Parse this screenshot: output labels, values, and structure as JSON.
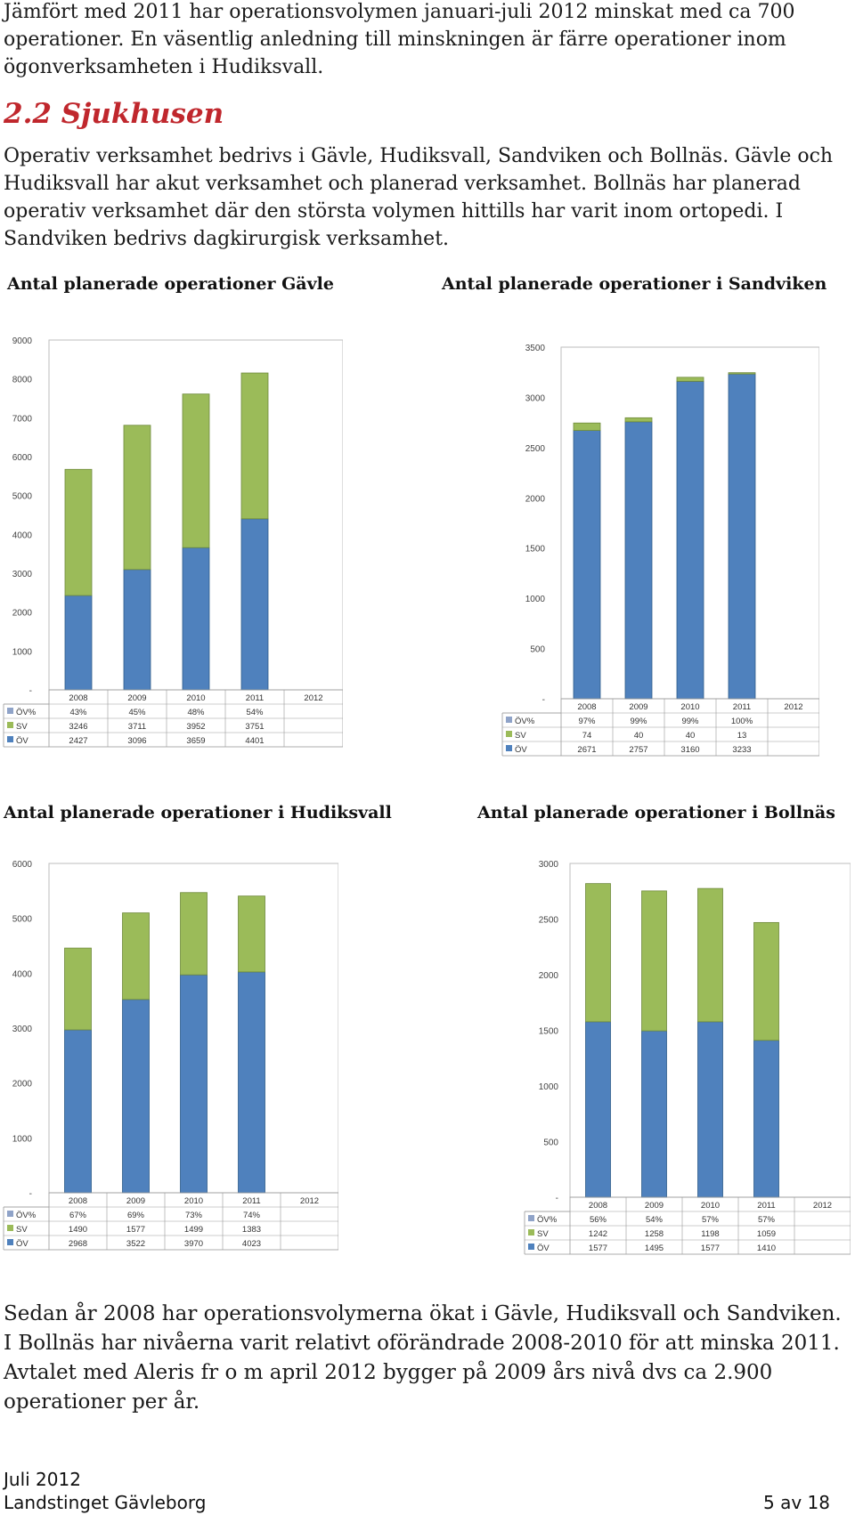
{
  "intro": "Jämfört med 2011 har operationsvolymen januari-juli 2012 minskat med ca 700 operationer. En väsentlig anledning till minskningen är färre operationer inom ögonverksamheten i Hudiksvall.",
  "section_heading": "2.2 Sjukhusen",
  "hospitals_paragraph": "Operativ verksamhet bedrivs i Gävle, Hudiksvall, Sandviken och Bollnäs. Gävle och Hudiksvall har akut verksamhet och planerad verksamhet. Bollnäs har planerad operativ verksamhet där den största volymen hittills har varit inom ortopedi. I Sandviken bedrivs dagkirurgisk verksamhet.",
  "colors": {
    "ov": "#4f81bd",
    "sv": "#9bbb59",
    "heading": "#c0272d"
  },
  "chart_data": [
    {
      "type": "bar",
      "title": "Antal planerade operationer Gävle",
      "categories": [
        "2008",
        "2009",
        "2010",
        "2011",
        "2012"
      ],
      "yticks": [
        "9000",
        "8000",
        "7000",
        "6000",
        "5000",
        "4000",
        "3000",
        "2000",
        "1000",
        "-"
      ],
      "ylim": [
        0,
        9000
      ],
      "series": [
        {
          "name": "ÖV",
          "values": [
            2427,
            3096,
            3659,
            4401,
            null
          ]
        },
        {
          "name": "SV",
          "values": [
            3246,
            3711,
            3952,
            3751,
            null
          ]
        }
      ],
      "table": {
        "rows": [
          {
            "name": "ÖV%",
            "values": [
              "43%",
              "45%",
              "48%",
              "54%",
              ""
            ]
          },
          {
            "name": "SV",
            "values": [
              "3246",
              "3711",
              "3952",
              "3751",
              ""
            ]
          },
          {
            "name": "ÖV",
            "values": [
              "2427",
              "3096",
              "3659",
              "4401",
              ""
            ]
          }
        ]
      }
    },
    {
      "type": "bar",
      "title": "Antal planerade operationer i Sandviken",
      "categories": [
        "2008",
        "2009",
        "2010",
        "2011",
        "2012"
      ],
      "yticks": [
        "3500",
        "3000",
        "2500",
        "2000",
        "1500",
        "1000",
        "500",
        "-"
      ],
      "ylim": [
        0,
        3500
      ],
      "series": [
        {
          "name": "ÖV",
          "values": [
            2671,
            2757,
            3160,
            3233,
            null
          ]
        },
        {
          "name": "SV",
          "values": [
            74,
            40,
            40,
            13,
            null
          ]
        }
      ],
      "table": {
        "rows": [
          {
            "name": "ÖV%",
            "values": [
              "97%",
              "99%",
              "99%",
              "100%",
              ""
            ]
          },
          {
            "name": "SV",
            "values": [
              "74",
              "40",
              "40",
              "13",
              ""
            ]
          },
          {
            "name": "ÖV",
            "values": [
              "2671",
              "2757",
              "3160",
              "3233",
              ""
            ]
          }
        ]
      }
    },
    {
      "type": "bar",
      "title": "Antal planerade operationer i Hudiksvall",
      "categories": [
        "2008",
        "2009",
        "2010",
        "2011",
        "2012"
      ],
      "yticks": [
        "6000",
        "5000",
        "4000",
        "3000",
        "2000",
        "1000",
        "-"
      ],
      "ylim": [
        0,
        6000
      ],
      "series": [
        {
          "name": "ÖV",
          "values": [
            2968,
            3522,
            3970,
            4023,
            null
          ]
        },
        {
          "name": "SV",
          "values": [
            1490,
            1577,
            1499,
            1383,
            null
          ]
        }
      ],
      "table": {
        "rows": [
          {
            "name": "ÖV%",
            "values": [
              "67%",
              "69%",
              "73%",
              "74%",
              ""
            ]
          },
          {
            "name": "SV",
            "values": [
              "1490",
              "1577",
              "1499",
              "1383",
              ""
            ]
          },
          {
            "name": "ÖV",
            "values": [
              "2968",
              "3522",
              "3970",
              "4023",
              ""
            ]
          }
        ]
      }
    },
    {
      "type": "bar",
      "title": "Antal planerade operationer i Bollnäs",
      "categories": [
        "2008",
        "2009",
        "2010",
        "2011",
        "2012"
      ],
      "yticks": [
        "3000",
        "2500",
        "2000",
        "1500",
        "1000",
        "500",
        "-"
      ],
      "ylim": [
        0,
        3000
      ],
      "series": [
        {
          "name": "ÖV",
          "values": [
            1577,
            1495,
            1577,
            1410,
            null
          ]
        },
        {
          "name": "SV",
          "values": [
            1242,
            1258,
            1198,
            1059,
            null
          ]
        }
      ],
      "table": {
        "rows": [
          {
            "name": "ÖV%",
            "values": [
              "56%",
              "54%",
              "57%",
              "57%",
              ""
            ]
          },
          {
            "name": "SV",
            "values": [
              "1242",
              "1258",
              "1198",
              "1059",
              ""
            ]
          },
          {
            "name": "ÖV",
            "values": [
              "1577",
              "1495",
              "1577",
              "1410",
              ""
            ]
          }
        ]
      }
    }
  ],
  "summary": "Sedan år 2008 har operationsvolymerna ökat i Gävle, Hudiksvall och Sandviken. I Bollnäs har nivåerna varit relativt oförändrade 2008-2010 för att minska 2011. Avtalet med Aleris fr o m april 2012 bygger på 2009 års nivå dvs ca 2.900 operationer per år.",
  "footer": {
    "date": "Juli 2012",
    "org": "Landstinget Gävleborg",
    "page": "5 av 18"
  }
}
